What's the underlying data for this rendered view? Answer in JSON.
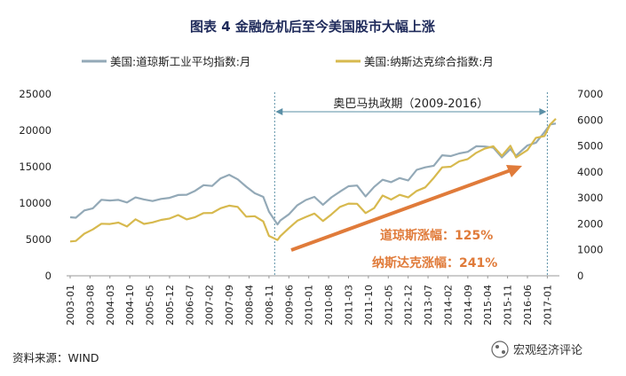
{
  "chart_data": {
    "type": "line",
    "title": "图表 4  金融危机后至今美国股市大幅上涨",
    "y_left": {
      "ylim": [
        0,
        25000
      ],
      "ticks": [
        "0",
        "5000",
        "10000",
        "15000",
        "20000",
        "25000"
      ]
    },
    "y_right": {
      "ylim": [
        0,
        7000
      ],
      "ticks": [
        "0",
        "1000",
        "2000",
        "3000",
        "4000",
        "5000",
        "6000",
        "7000"
      ]
    },
    "x_ticks": [
      "2003-01",
      "2003-08",
      "2004-03",
      "2004-10",
      "2005-05",
      "2005-12",
      "2006-07",
      "2007-02",
      "2007-09",
      "2008-04",
      "2008-11",
      "2009-06",
      "2010-01",
      "2010-08",
      "2011-03",
      "2011-10",
      "2012-05",
      "2012-12",
      "2013-07",
      "2014-02",
      "2014-09",
      "2015-04",
      "2015-11",
      "2016-06",
      "2017-01"
    ],
    "series": [
      {
        "name": "美国:道琼斯工业平均指数:月",
        "axis": "left",
        "color": "#93a9b7",
        "x": [
          "2003-01",
          "2003-03",
          "2003-06",
          "2003-09",
          "2003-12",
          "2004-03",
          "2004-06",
          "2004-09",
          "2004-12",
          "2005-03",
          "2005-06",
          "2005-09",
          "2005-12",
          "2006-03",
          "2006-06",
          "2006-09",
          "2006-12",
          "2007-03",
          "2007-06",
          "2007-09",
          "2007-12",
          "2008-03",
          "2008-06",
          "2008-09",
          "2008-11",
          "2009-02",
          "2009-03",
          "2009-06",
          "2009-09",
          "2009-12",
          "2010-03",
          "2010-06",
          "2010-09",
          "2010-12",
          "2011-03",
          "2011-06",
          "2011-09",
          "2011-12",
          "2012-03",
          "2012-06",
          "2012-09",
          "2012-12",
          "2013-03",
          "2013-06",
          "2013-09",
          "2013-12",
          "2014-03",
          "2014-06",
          "2014-09",
          "2014-12",
          "2015-03",
          "2015-06",
          "2015-09",
          "2015-12",
          "2016-02",
          "2016-06",
          "2016-09",
          "2016-12",
          "2017-02",
          "2017-04"
        ],
        "values": [
          8053,
          7992,
          8985,
          9275,
          10453,
          10357,
          10435,
          10080,
          10783,
          10504,
          10275,
          10569,
          10718,
          11109,
          11150,
          11679,
          12463,
          12354,
          13408,
          13896,
          13264,
          12262,
          11350,
          10850,
          8829,
          7063,
          7609,
          8447,
          9712,
          10428,
          10857,
          9774,
          10788,
          11578,
          12320,
          12414,
          10913,
          12218,
          13212,
          12880,
          13437,
          13104,
          14579,
          14910,
          15130,
          16577,
          16458,
          16827,
          17043,
          17823,
          17776,
          17620,
          16285,
          17425,
          16517,
          17930,
          18308,
          19763,
          20812,
          20940
        ]
      },
      {
        "name": "美国:纳斯达克综合指数:月",
        "axis": "right",
        "color": "#d7b94e",
        "x": [
          "2003-01",
          "2003-03",
          "2003-06",
          "2003-09",
          "2003-12",
          "2004-03",
          "2004-06",
          "2004-09",
          "2004-12",
          "2005-03",
          "2005-06",
          "2005-09",
          "2005-12",
          "2006-03",
          "2006-06",
          "2006-09",
          "2006-12",
          "2007-03",
          "2007-06",
          "2007-09",
          "2007-12",
          "2008-03",
          "2008-06",
          "2008-09",
          "2008-11",
          "2009-02",
          "2009-03",
          "2009-06",
          "2009-09",
          "2009-12",
          "2010-03",
          "2010-06",
          "2010-09",
          "2010-12",
          "2011-03",
          "2011-06",
          "2011-09",
          "2011-12",
          "2012-03",
          "2012-06",
          "2012-09",
          "2012-12",
          "2013-03",
          "2013-06",
          "2013-09",
          "2013-12",
          "2014-03",
          "2014-06",
          "2014-09",
          "2014-12",
          "2015-03",
          "2015-06",
          "2015-09",
          "2015-12",
          "2016-02",
          "2016-06",
          "2016-09",
          "2016-12",
          "2017-02",
          "2017-04"
        ],
        "values": [
          1321,
          1341,
          1623,
          1787,
          2003,
          1994,
          2048,
          1897,
          2175,
          1999,
          2057,
          2151,
          2205,
          2339,
          2172,
          2258,
          2415,
          2421,
          2603,
          2701,
          2652,
          2279,
          2293,
          2092,
          1536,
          1378,
          1528,
          1835,
          2122,
          2269,
          2398,
          2109,
          2368,
          2653,
          2781,
          2774,
          2415,
          2605,
          3091,
          2935,
          3116,
          3020,
          3268,
          3403,
          3771,
          4176,
          4199,
          4408,
          4493,
          4736,
          4900,
          4987,
          4620,
          5007,
          4558,
          4843,
          5312,
          5383,
          5825,
          6048
        ]
      }
    ]
  },
  "annotations": {
    "period_label": "奥巴马执政期（2009-2016）",
    "dji_gain": "道琼斯涨幅：125%",
    "nasdaq_gain": "纳斯达克涨幅：241%"
  },
  "footer": {
    "source": "资料来源：WIND",
    "watermark": "宏观经济评论"
  },
  "colors": {
    "arrow": "#e07b3a",
    "divider": "#5a8fa6"
  }
}
